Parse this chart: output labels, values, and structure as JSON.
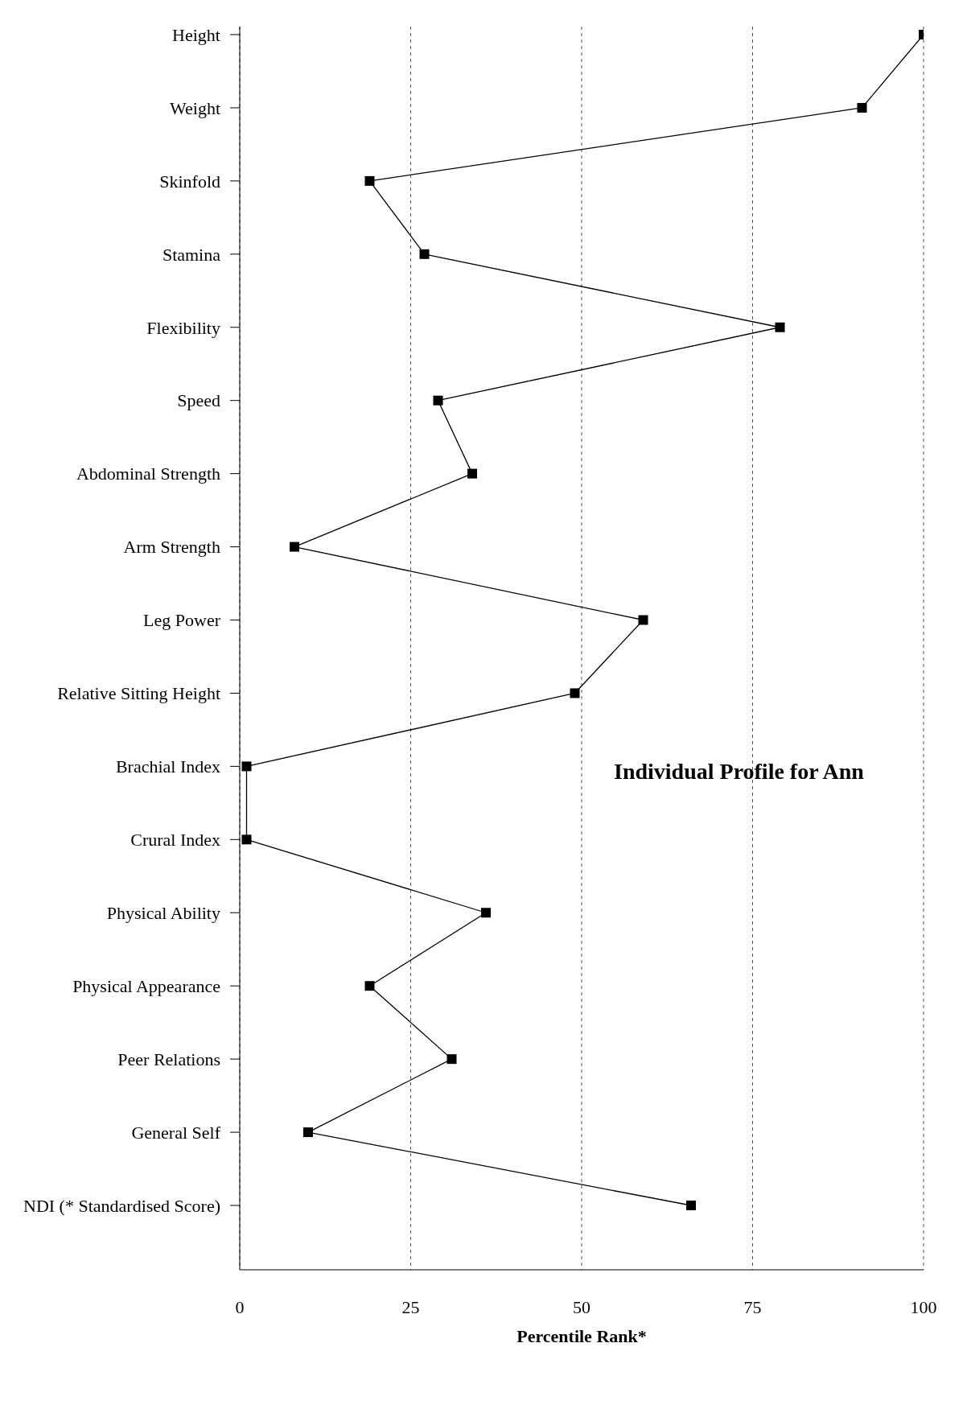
{
  "chart_data": {
    "type": "line",
    "orientation": "horizontal",
    "xlabel": "Percentile Rank*",
    "annotations": [
      "Individual Profile for Ann"
    ],
    "categories": [
      "Height",
      "Weight",
      "Skinfold",
      "Stamina",
      "Flexibility",
      "Speed",
      "Abdominal Strength",
      "Arm Strength",
      "Leg Power",
      "Relative Sitting Height",
      "Brachial Index",
      "Crural Index",
      "Physical Ability",
      "Physical Appearance",
      "Peer Relations",
      "General Self",
      "NDI   (* Standardised Score)"
    ],
    "series": [
      {
        "color": "#000000",
        "values": [
          100,
          91,
          19,
          27,
          79,
          29,
          34,
          8,
          59,
          49,
          1,
          1,
          36,
          19,
          31,
          10,
          66
        ]
      }
    ],
    "xlim": [
      0,
      100
    ],
    "xticks": [
      0,
      25,
      50,
      75,
      100
    ],
    "grid": "x",
    "marker": "square",
    "line_style": "solid"
  }
}
